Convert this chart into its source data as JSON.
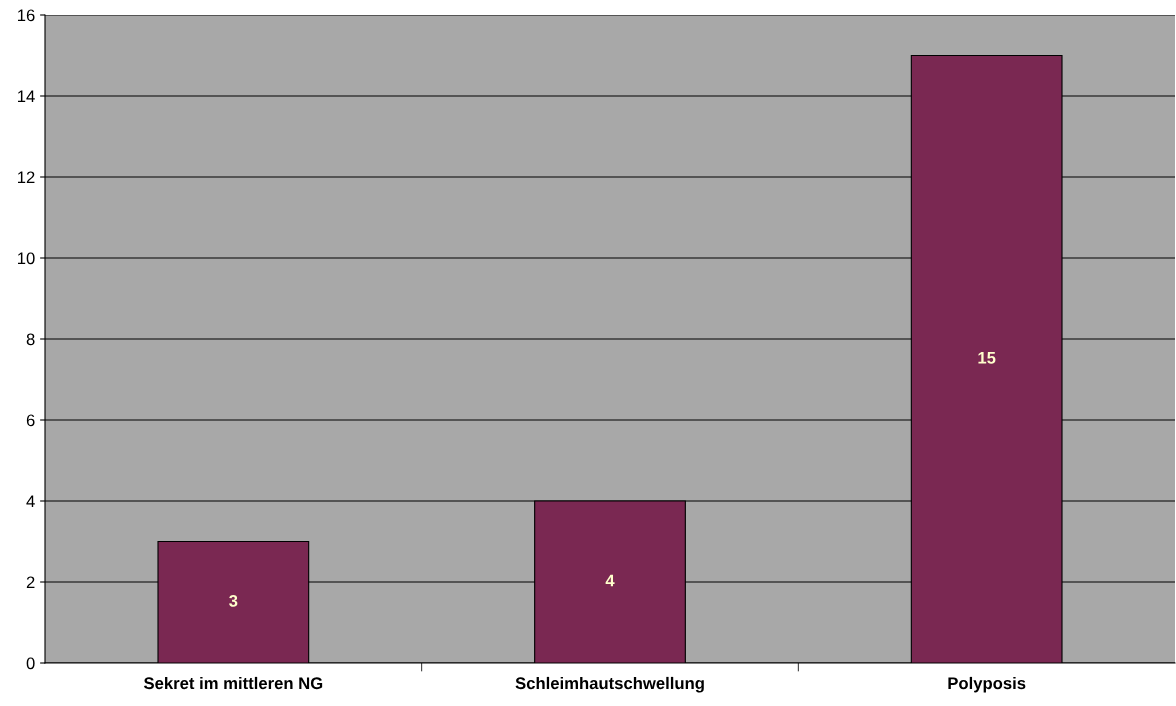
{
  "chart_data": {
    "type": "bar",
    "categories": [
      "Sekret im mittleren NG",
      "Schleimhautschwellung",
      "Polyposis"
    ],
    "values": [
      3,
      4,
      15
    ],
    "color": "#7a2852",
    "ylim": [
      0,
      16
    ],
    "yticks": [
      0,
      2,
      4,
      6,
      8,
      10,
      12,
      14,
      16
    ],
    "grid": "y",
    "data_labels": true
  }
}
